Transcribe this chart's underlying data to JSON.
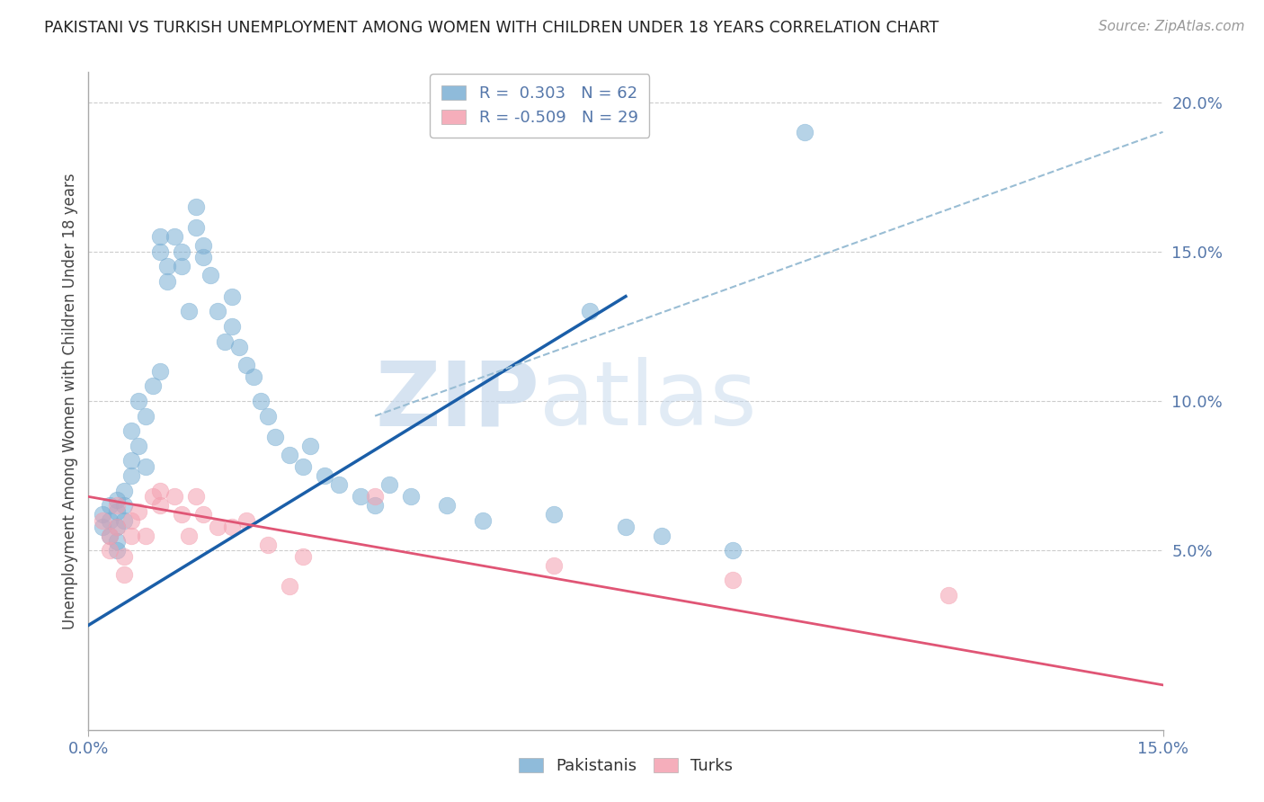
{
  "title": "PAKISTANI VS TURKISH UNEMPLOYMENT AMONG WOMEN WITH CHILDREN UNDER 18 YEARS CORRELATION CHART",
  "source": "Source: ZipAtlas.com",
  "ylabel": "Unemployment Among Women with Children Under 18 years",
  "xlim": [
    0.0,
    0.15
  ],
  "ylim": [
    -0.01,
    0.21
  ],
  "ylim_plot": [
    0.0,
    0.21
  ],
  "legend_blue_r": "R =  0.303",
  "legend_blue_n": "N = 62",
  "legend_pink_r": "R = -0.509",
  "legend_pink_n": "N = 29",
  "blue_color": "#7BAFD4",
  "pink_color": "#F4A0B0",
  "blue_trend_color": "#1A5EA8",
  "pink_trend_color": "#E05575",
  "blue_dashed_color": "#99BDD4",
  "background_color": "#FFFFFF",
  "grid_color": "#CCCCCC",
  "watermark_zip": "ZIP",
  "watermark_atlas": "atlas",
  "blue_scatter_x": [
    0.002,
    0.002,
    0.003,
    0.003,
    0.003,
    0.004,
    0.004,
    0.004,
    0.004,
    0.004,
    0.005,
    0.005,
    0.005,
    0.006,
    0.006,
    0.006,
    0.007,
    0.007,
    0.008,
    0.008,
    0.009,
    0.01,
    0.01,
    0.01,
    0.011,
    0.011,
    0.012,
    0.013,
    0.013,
    0.014,
    0.015,
    0.015,
    0.016,
    0.016,
    0.017,
    0.018,
    0.019,
    0.02,
    0.02,
    0.021,
    0.022,
    0.023,
    0.024,
    0.025,
    0.026,
    0.028,
    0.03,
    0.031,
    0.033,
    0.035,
    0.038,
    0.04,
    0.042,
    0.045,
    0.05,
    0.055,
    0.065,
    0.07,
    0.075,
    0.08,
    0.09,
    0.1
  ],
  "blue_scatter_y": [
    0.062,
    0.058,
    0.065,
    0.06,
    0.055,
    0.067,
    0.063,
    0.058,
    0.053,
    0.05,
    0.07,
    0.065,
    0.06,
    0.075,
    0.08,
    0.09,
    0.1,
    0.085,
    0.095,
    0.078,
    0.105,
    0.11,
    0.15,
    0.155,
    0.145,
    0.14,
    0.155,
    0.15,
    0.145,
    0.13,
    0.165,
    0.158,
    0.152,
    0.148,
    0.142,
    0.13,
    0.12,
    0.125,
    0.135,
    0.118,
    0.112,
    0.108,
    0.1,
    0.095,
    0.088,
    0.082,
    0.078,
    0.085,
    0.075,
    0.072,
    0.068,
    0.065,
    0.072,
    0.068,
    0.065,
    0.06,
    0.062,
    0.13,
    0.058,
    0.055,
    0.05,
    0.19
  ],
  "pink_scatter_x": [
    0.002,
    0.003,
    0.003,
    0.004,
    0.004,
    0.005,
    0.005,
    0.006,
    0.006,
    0.007,
    0.008,
    0.009,
    0.01,
    0.01,
    0.012,
    0.013,
    0.014,
    0.015,
    0.016,
    0.018,
    0.02,
    0.022,
    0.025,
    0.028,
    0.03,
    0.04,
    0.065,
    0.09,
    0.12
  ],
  "pink_scatter_y": [
    0.06,
    0.055,
    0.05,
    0.065,
    0.058,
    0.048,
    0.042,
    0.06,
    0.055,
    0.063,
    0.055,
    0.068,
    0.07,
    0.065,
    0.068,
    0.062,
    0.055,
    0.068,
    0.062,
    0.058,
    0.058,
    0.06,
    0.052,
    0.038,
    0.048,
    0.068,
    0.045,
    0.04,
    0.035
  ],
  "blue_line_x": [
    0.0,
    0.075
  ],
  "blue_line_y": [
    0.025,
    0.135
  ],
  "blue_dashed_line_x": [
    0.04,
    0.15
  ],
  "blue_dashed_line_y": [
    0.095,
    0.19
  ],
  "pink_line_x": [
    0.0,
    0.15
  ],
  "pink_line_y": [
    0.068,
    0.005
  ],
  "tick_color": "#5577AA",
  "ylabel_color": "#444444",
  "title_color": "#222222"
}
